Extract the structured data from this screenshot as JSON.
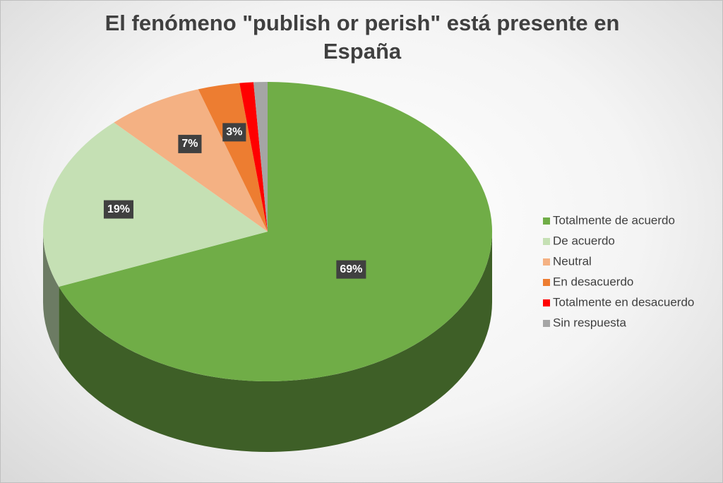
{
  "chart_data": {
    "type": "pie",
    "title": "El fenómeno \"publish or perish\" está presente en España",
    "categories": [
      "Totalmente de acuerdo",
      "De acuerdo",
      "Neutral",
      "En desacuerdo",
      "Totalmente en desacuerdo",
      "Sin respuesta"
    ],
    "values": [
      69,
      19,
      7,
      3,
      1,
      1
    ],
    "value_labels": [
      "69%",
      "19%",
      "7%",
      "3%",
      null,
      null
    ],
    "colors": [
      "#70ad47",
      "#c5e0b4",
      "#f4b183",
      "#ed7d31",
      "#ff0000",
      "#a5a5a5"
    ],
    "legend": "right"
  }
}
